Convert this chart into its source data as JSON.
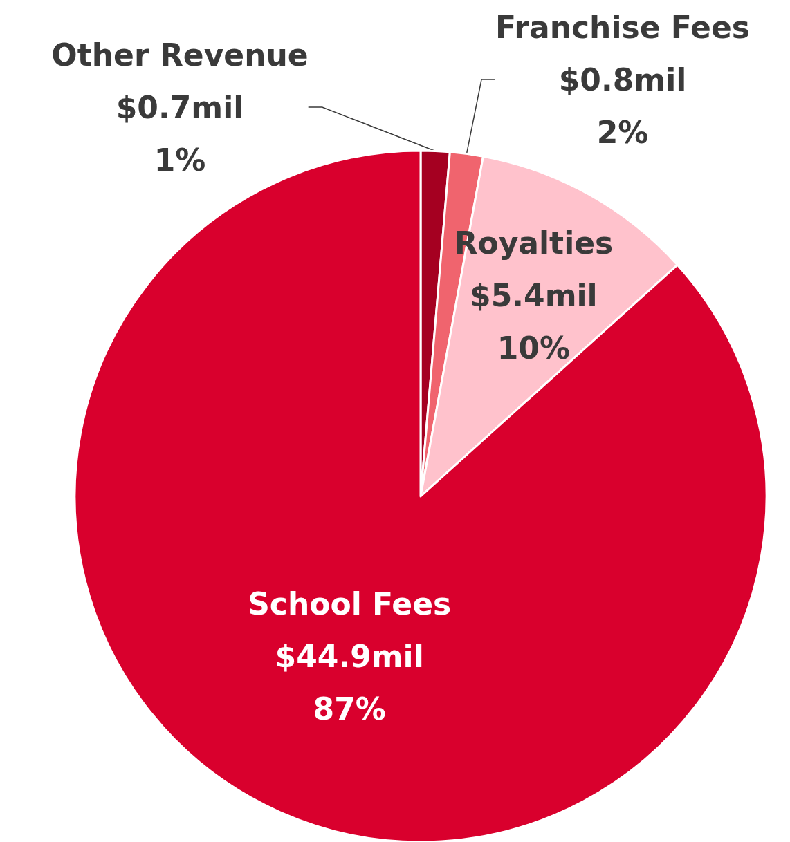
{
  "chart_data": {
    "type": "pie",
    "categories": [
      "Other Revenue",
      "Franchise Fees",
      "Royalties",
      "School Fees"
    ],
    "values": [
      0.7,
      0.8,
      5.4,
      44.9
    ],
    "colors": [
      "#a50021",
      "#f0646e",
      "#ffc2cc",
      "#d9002d"
    ],
    "value_labels": [
      "$0.7mil\n1%",
      "$0.8mil\n2%",
      "$5.4mil\n10%",
      "$44.9mil\n87%"
    ],
    "legend": false
  }
}
